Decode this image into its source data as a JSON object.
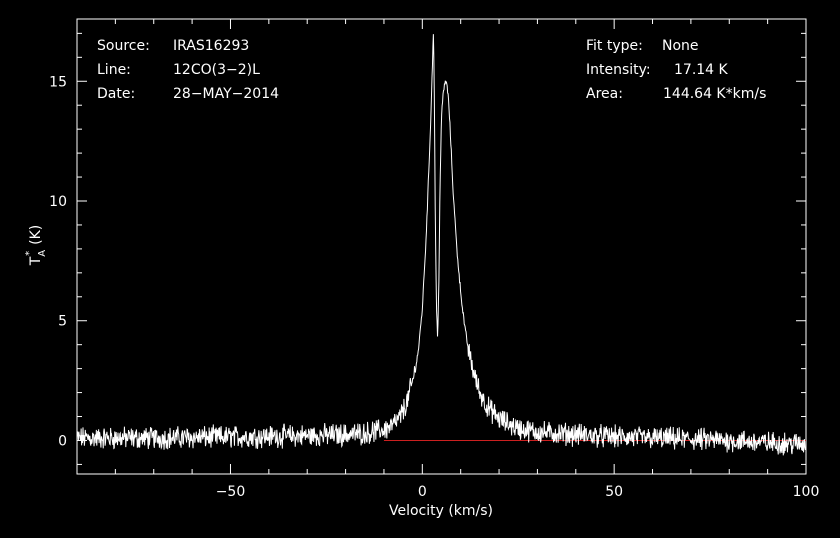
{
  "chart_data": {
    "type": "line",
    "xlabel": "Velocity (km/s)",
    "ylabel_main": "T",
    "ylabel_sup": "*",
    "ylabel_sub": "A",
    "ylabel_unit": "(K)",
    "xlim": [
      -90,
      100
    ],
    "ylim": [
      -1.4,
      17.6
    ],
    "xticks": [
      -50,
      0,
      50,
      100
    ],
    "xtick_labels": [
      "−50",
      "0",
      "50",
      "100"
    ],
    "yticks": [
      0,
      5,
      10,
      15
    ],
    "ytick_labels": [
      "0",
      "5",
      "10",
      "15"
    ],
    "baseline": 0,
    "grid": false,
    "series": [
      {
        "x": [
          -90,
          -70,
          -50,
          -30,
          -20,
          -15,
          -10,
          -8,
          -6,
          -4,
          -2,
          -1,
          0,
          1,
          2,
          2.6,
          2.9,
          3.1,
          3.4,
          3.7,
          4.0,
          4.3,
          4.6,
          5.0,
          5.5,
          6.0,
          6.5,
          7.0,
          7.5,
          8.0,
          9.0,
          10,
          11,
          12,
          13,
          14,
          15,
          17,
          20,
          25,
          30,
          40,
          50,
          60,
          70,
          80,
          90,
          100
        ],
        "values": [
          0.1,
          0.1,
          0.15,
          0.2,
          0.25,
          0.3,
          0.45,
          0.6,
          0.9,
          1.6,
          2.8,
          3.8,
          5.5,
          8.5,
          12.5,
          15.5,
          17.14,
          15.0,
          9.0,
          5.5,
          4.2,
          6.5,
          10.5,
          13.5,
          14.6,
          15.0,
          14.8,
          13.8,
          12.2,
          10.5,
          8.0,
          6.2,
          4.8,
          3.8,
          3.1,
          2.5,
          2.0,
          1.4,
          0.9,
          0.5,
          0.35,
          0.25,
          0.15,
          0.1,
          0.05,
          0.0,
          -0.1,
          -0.15
        ]
      }
    ]
  },
  "info": {
    "source_label": "Source:",
    "source_value": "IRAS16293",
    "line_label": "Line:",
    "line_value": "12CO(3−2)L",
    "date_label": "Date:",
    "date_value": "28−MAY−2014",
    "fit_label": "Fit type:",
    "fit_value": "None",
    "intensity_label": "Intensity:",
    "intensity_value": "17.14 K",
    "area_label": "Area:",
    "area_value": "144.64 K*km/s"
  },
  "colors": {
    "background": "#000000",
    "axes": "#ffffff",
    "spectrum": "#ffffff",
    "baseline": "#cc2020"
  }
}
